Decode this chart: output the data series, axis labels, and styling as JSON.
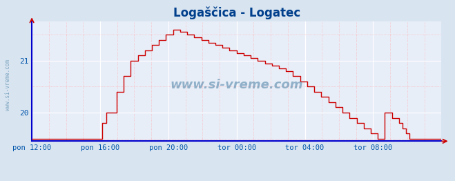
{
  "title": "Logaščica - Logatec",
  "title_color": "#003f8c",
  "bg_color": "#d8e4f0",
  "plot_bg_color": "#e8eef8",
  "grid_color_major": "#ffffff",
  "grid_color_minor": "#ffaaaa",
  "line_color": "#cc0000",
  "axis_color": "#0000cc",
  "tick_label_color": "#0055aa",
  "watermark_color": "#5588aa",
  "legend_marker_color": "#cc0000",
  "x_tick_labels": [
    "pon 12:00",
    "pon 16:00",
    "pon 20:00",
    "tor 00:00",
    "tor 04:00",
    "tor 08:00"
  ],
  "x_tick_positions": [
    0,
    48,
    96,
    144,
    192,
    240
  ],
  "y_ticks": [
    20,
    21
  ],
  "ylim": [
    19.45,
    21.75
  ],
  "xlim": [
    0,
    288
  ],
  "watermark": "www.si-vreme.com",
  "sidewatermark": "www.si-vreme.com",
  "temp_data": [
    19.5,
    19.5,
    19.5,
    19.5,
    19.5,
    19.5,
    19.5,
    19.5,
    19.5,
    19.5,
    19.5,
    19.5,
    19.5,
    19.5,
    19.5,
    19.5,
    19.5,
    19.5,
    19.5,
    19.5,
    19.5,
    19.5,
    19.5,
    19.5,
    19.5,
    19.5,
    19.5,
    19.5,
    19.5,
    19.5,
    19.5,
    19.5,
    19.5,
    19.5,
    19.5,
    19.5,
    19.5,
    19.5,
    19.5,
    19.5,
    19.8,
    19.8,
    20.0,
    20.0,
    20.0,
    20.0,
    20.0,
    20.0,
    20.4,
    20.4,
    20.4,
    20.4,
    20.7,
    20.7,
    20.7,
    20.7,
    21.0,
    21.0,
    21.0,
    21.0,
    21.1,
    21.1,
    21.1,
    21.1,
    21.2,
    21.2,
    21.2,
    21.2,
    21.3,
    21.3,
    21.3,
    21.3,
    21.4,
    21.4,
    21.4,
    21.4,
    21.5,
    21.5,
    21.5,
    21.5,
    21.6,
    21.6,
    21.6,
    21.6,
    21.55,
    21.55,
    21.55,
    21.55,
    21.5,
    21.5,
    21.5,
    21.5,
    21.45,
    21.45,
    21.45,
    21.45,
    21.4,
    21.4,
    21.4,
    21.4,
    21.35,
    21.35,
    21.35,
    21.35,
    21.3,
    21.3,
    21.3,
    21.3,
    21.25,
    21.25,
    21.25,
    21.25,
    21.2,
    21.2,
    21.2,
    21.2,
    21.15,
    21.15,
    21.15,
    21.15,
    21.1,
    21.1,
    21.1,
    21.1,
    21.05,
    21.05,
    21.05,
    21.05,
    21.0,
    21.0,
    21.0,
    21.0,
    20.95,
    20.95,
    20.95,
    20.95,
    20.9,
    20.9,
    20.9,
    20.9,
    20.85,
    20.85,
    20.85,
    20.85,
    20.8,
    20.8,
    20.8,
    20.8,
    20.7,
    20.7,
    20.7,
    20.7,
    20.6,
    20.6,
    20.6,
    20.6,
    20.5,
    20.5,
    20.5,
    20.5,
    20.4,
    20.4,
    20.4,
    20.4,
    20.3,
    20.3,
    20.3,
    20.3,
    20.2,
    20.2,
    20.2,
    20.2,
    20.1,
    20.1,
    20.1,
    20.1,
    20.0,
    20.0,
    20.0,
    20.0,
    19.9,
    19.9,
    19.9,
    19.9,
    19.8,
    19.8,
    19.8,
    19.8,
    19.7,
    19.7,
    19.7,
    19.7,
    19.6,
    19.6,
    19.6,
    19.6,
    19.5,
    19.5,
    19.5,
    19.5,
    20.0,
    20.0,
    20.0,
    20.0,
    19.9,
    19.9,
    19.9,
    19.9,
    19.8,
    19.8,
    19.7,
    19.7,
    19.6,
    19.6,
    19.5,
    19.5,
    19.5,
    19.5,
    19.5,
    19.5,
    19.5,
    19.5,
    19.5,
    19.5,
    19.5,
    19.5,
    19.5,
    19.5,
    19.5,
    19.5,
    19.5,
    19.5,
    19.5
  ]
}
